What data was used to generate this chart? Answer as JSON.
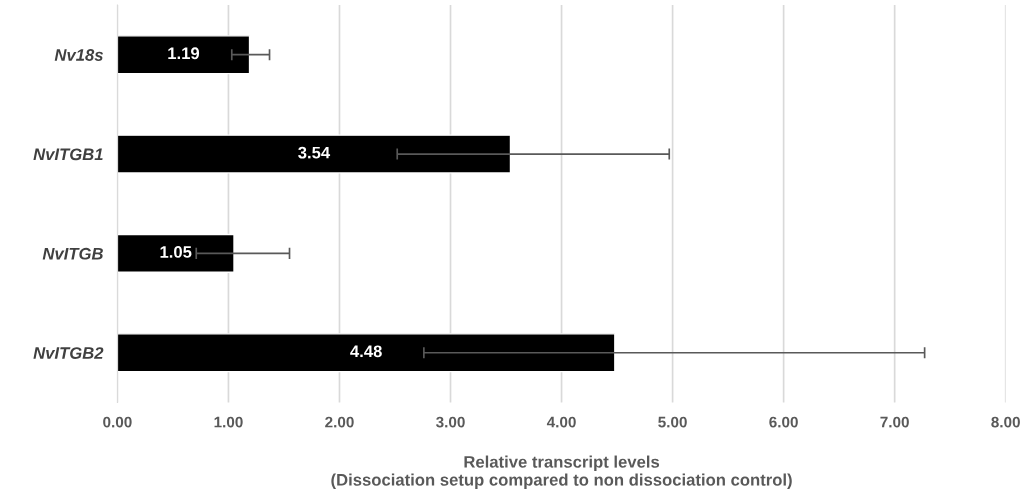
{
  "chart_data": {
    "type": "bar",
    "orientation": "horizontal",
    "xlabel": "Relative transcript levels\n(Dissociation setup compared to non dissociation control)",
    "categories": [
      "Nv18s",
      "NvITGB1",
      "NvITGB",
      "NvITGB2"
    ],
    "values": [
      1.19,
      3.54,
      1.05,
      4.48
    ],
    "errors": [
      [
        1.03,
        1.37
      ],
      [
        2.52,
        4.97
      ],
      [
        0.71,
        1.55
      ],
      [
        2.76,
        7.27
      ]
    ],
    "color": "#000000",
    "data_labels": true,
    "xlim": [
      0,
      8
    ],
    "xticks": [
      {
        "value": 0,
        "label": "0.00"
      },
      {
        "value": 1,
        "label": "1.00"
      },
      {
        "value": 2,
        "label": "2.00"
      },
      {
        "value": 3,
        "label": "3.00"
      },
      {
        "value": 4,
        "label": "4.00"
      },
      {
        "value": 5,
        "label": "5.00"
      },
      {
        "value": 6,
        "label": "6.00"
      },
      {
        "value": 7,
        "label": "7.00"
      },
      {
        "value": 8,
        "label": "8.00"
      }
    ],
    "grid": "x"
  }
}
